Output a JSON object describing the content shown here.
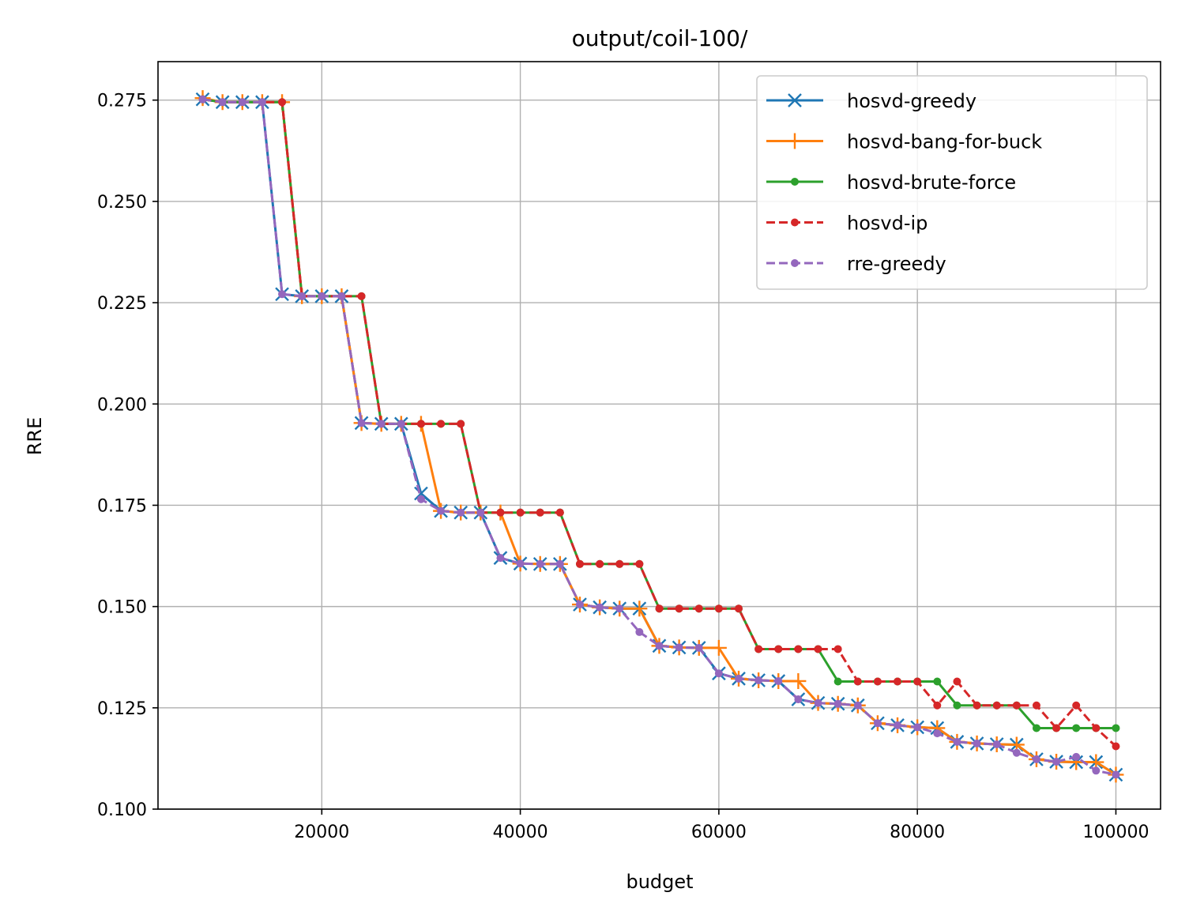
{
  "chart_data": {
    "type": "line",
    "title": "output/coil-100/",
    "xlabel": "budget",
    "ylabel": "RRE",
    "xlim": [
      3500,
      104500
    ],
    "ylim": [
      0.1,
      0.2845
    ],
    "xticks": [
      20000,
      40000,
      60000,
      80000,
      100000
    ],
    "xtick_labels": [
      "20000",
      "40000",
      "60000",
      "80000",
      "100000"
    ],
    "yticks": [
      0.1,
      0.125,
      0.15,
      0.175,
      0.2,
      0.225,
      0.25,
      0.275
    ],
    "ytick_labels": [
      "0.100",
      "0.125",
      "0.150",
      "0.175",
      "0.200",
      "0.225",
      "0.250",
      "0.275"
    ],
    "grid": true,
    "legend_position": "top-right",
    "x": [
      8000,
      10000,
      12000,
      14000,
      16000,
      18000,
      20000,
      22000,
      24000,
      26000,
      28000,
      30000,
      32000,
      34000,
      36000,
      38000,
      40000,
      42000,
      44000,
      46000,
      48000,
      50000,
      52000,
      54000,
      56000,
      58000,
      60000,
      62000,
      64000,
      66000,
      68000,
      70000,
      72000,
      74000,
      76000,
      78000,
      80000,
      82000,
      84000,
      86000,
      88000,
      90000,
      92000,
      94000,
      96000,
      98000,
      100000
    ],
    "series": [
      {
        "name": "hosvd-greedy",
        "color": "#1f77b4",
        "marker": "x",
        "dashed": false,
        "values": [
          0.2752,
          0.2745,
          0.2745,
          0.2745,
          0.2271,
          0.2266,
          0.2266,
          0.2266,
          0.1953,
          0.1951,
          0.1951,
          0.1779,
          0.1736,
          0.1732,
          0.1732,
          0.162,
          0.1606,
          0.1605,
          0.1605,
          0.1505,
          0.1498,
          0.1495,
          0.1495,
          0.1403,
          0.1399,
          0.1398,
          0.1335,
          0.1322,
          0.1318,
          0.1316,
          0.1271,
          0.1262,
          0.126,
          0.1256,
          0.1212,
          0.1207,
          0.1202,
          0.12,
          0.1166,
          0.1162,
          0.116,
          0.1159,
          0.1123,
          0.1117,
          0.1116,
          0.1116,
          0.1085
        ]
      },
      {
        "name": "hosvd-bang-for-buck",
        "color": "#ff7f0e",
        "marker": "+",
        "dashed": false,
        "values": [
          0.2755,
          0.2745,
          0.2745,
          0.2745,
          0.2745,
          0.2266,
          0.2266,
          0.2266,
          0.1953,
          0.1951,
          0.1951,
          0.1951,
          0.1736,
          0.1732,
          0.1732,
          0.1732,
          0.1606,
          0.1605,
          0.1605,
          0.1505,
          0.1498,
          0.1495,
          0.1495,
          0.1403,
          0.1399,
          0.1398,
          0.1398,
          0.1322,
          0.1318,
          0.1316,
          0.1316,
          0.1262,
          0.126,
          0.1256,
          0.1212,
          0.1207,
          0.1202,
          0.12,
          0.1166,
          0.1162,
          0.116,
          0.1159,
          0.1123,
          0.1117,
          0.1116,
          0.1116,
          0.1085
        ]
      },
      {
        "name": "hosvd-brute-force",
        "color": "#2ca02c",
        "marker": "dot",
        "dashed": false,
        "values": [
          0.2752,
          0.2745,
          0.2745,
          0.2745,
          0.2745,
          0.2266,
          0.2266,
          0.2266,
          0.2266,
          0.1951,
          0.1951,
          0.1951,
          0.1951,
          0.1951,
          0.1732,
          0.1732,
          0.1732,
          0.1732,
          0.1732,
          0.1605,
          0.1605,
          0.1605,
          0.1605,
          0.1495,
          0.1495,
          0.1495,
          0.1495,
          0.1495,
          0.1395,
          0.1395,
          0.1395,
          0.1395,
          0.1315,
          0.1315,
          0.1315,
          0.1315,
          0.1315,
          0.1315,
          0.1256,
          0.1256,
          0.1256,
          0.1256,
          0.12,
          0.12,
          0.12,
          0.12,
          0.12
        ]
      },
      {
        "name": "hosvd-ip",
        "color": "#d62728",
        "marker": "dot",
        "dashed": true,
        "values": [
          0.2752,
          0.2745,
          0.2745,
          0.2745,
          0.2745,
          0.2266,
          0.2266,
          0.2266,
          0.2266,
          0.1951,
          0.1951,
          0.1951,
          0.1951,
          0.1951,
          0.1732,
          0.1732,
          0.1732,
          0.1732,
          0.1732,
          0.1605,
          0.1605,
          0.1605,
          0.1605,
          0.1495,
          0.1495,
          0.1495,
          0.1495,
          0.1495,
          0.1395,
          0.1395,
          0.1395,
          0.1395,
          0.1395,
          0.1315,
          0.1315,
          0.1315,
          0.1315,
          0.1256,
          0.1315,
          0.1256,
          0.1256,
          0.1256,
          0.1256,
          0.12,
          0.1256,
          0.12,
          0.1155
        ]
      },
      {
        "name": "rre-greedy",
        "color": "#9467bd",
        "marker": "dot",
        "dashed": true,
        "values": [
          0.2752,
          0.2745,
          0.2745,
          0.2745,
          0.2271,
          0.2266,
          0.2266,
          0.2266,
          0.1953,
          0.1951,
          0.1951,
          0.1765,
          0.1736,
          0.1732,
          0.1732,
          0.162,
          0.1606,
          0.1605,
          0.1605,
          0.1505,
          0.1498,
          0.1495,
          0.1437,
          0.1403,
          0.1399,
          0.1398,
          0.1335,
          0.1322,
          0.1318,
          0.1316,
          0.1271,
          0.1262,
          0.126,
          0.1256,
          0.1212,
          0.1207,
          0.1202,
          0.1187,
          0.1166,
          0.1162,
          0.116,
          0.1139,
          0.1123,
          0.1117,
          0.1129,
          0.1095,
          0.1085
        ]
      }
    ]
  }
}
